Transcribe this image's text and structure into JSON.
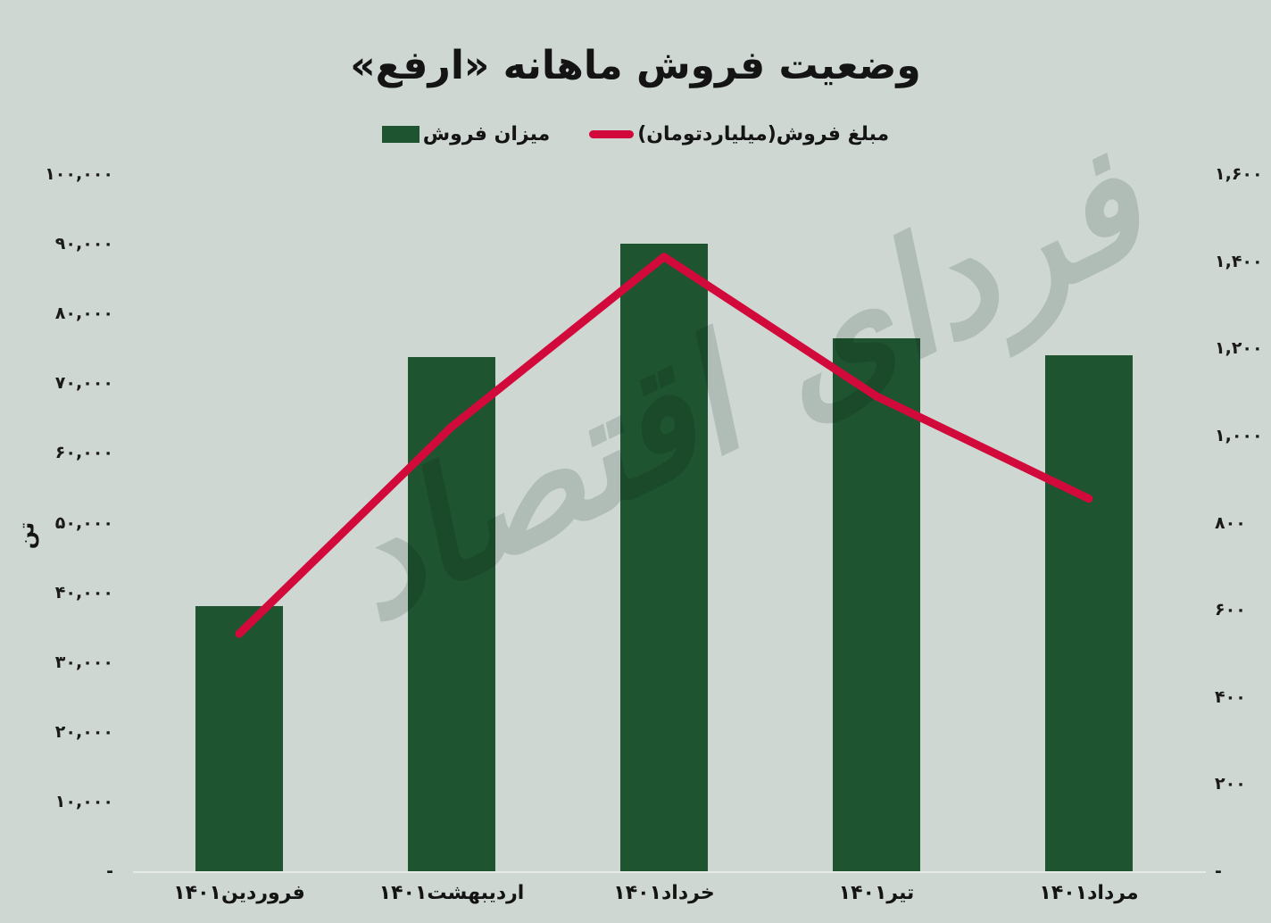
{
  "title": "وضعیت فروش ماهانه «ارفع»",
  "legend": {
    "bar_label": "میزان فروش",
    "line_label": "مبلغ فروش(میلیاردتومان)"
  },
  "watermark": {
    "text": "فردای اقتصاد"
  },
  "axes": {
    "left": {
      "title": "تن",
      "max": 100000,
      "ticks": [
        {
          "label": "۱۰۰,۰۰۰",
          "value": 100000
        },
        {
          "label": "۹۰,۰۰۰",
          "value": 90000
        },
        {
          "label": "۸۰,۰۰۰",
          "value": 80000
        },
        {
          "label": "۷۰,۰۰۰",
          "value": 70000
        },
        {
          "label": "۶۰,۰۰۰",
          "value": 60000
        },
        {
          "label": "۵۰,۰۰۰",
          "value": 50000
        },
        {
          "label": "۴۰,۰۰۰",
          "value": 40000
        },
        {
          "label": "۳۰,۰۰۰",
          "value": 30000
        },
        {
          "label": "۲۰,۰۰۰",
          "value": 20000
        },
        {
          "label": "۱۰,۰۰۰",
          "value": 10000
        },
        {
          "label": "-",
          "value": 0
        }
      ]
    },
    "right": {
      "max": 1600,
      "ticks": [
        {
          "label": "۱,۶۰۰",
          "value": 1600
        },
        {
          "label": "۱,۴۰۰",
          "value": 1400
        },
        {
          "label": "۱,۲۰۰",
          "value": 1200
        },
        {
          "label": "۱,۰۰۰",
          "value": 1000
        },
        {
          "label": "۸۰۰",
          "value": 800
        },
        {
          "label": "۶۰۰",
          "value": 600
        },
        {
          "label": "۴۰۰",
          "value": 400
        },
        {
          "label": "۲۰۰",
          "value": 200
        },
        {
          "label": "-",
          "value": 0
        }
      ]
    }
  },
  "colors": {
    "background": "#cfd7d3",
    "bar": "#1e5430",
    "line": "#d20a3c",
    "axis_line": "#e6eae8",
    "text": "#141414",
    "watermark": "#b9c4c0"
  },
  "chart_data": {
    "type": "combo-bar-line",
    "categories": [
      "فروردین۱۴۰۱",
      "اردیبهشت۱۴۰۱",
      "خرداد۱۴۰۱",
      "تیر۱۴۰۱",
      "مرداد۱۴۰۱"
    ],
    "series": [
      {
        "name": "میزان فروش",
        "type": "bar",
        "axis": "left",
        "unit": "تن",
        "color": "#1e5430",
        "values": [
          38000,
          73800,
          90000,
          76400,
          74000
        ]
      },
      {
        "name": "مبلغ فروش(میلیاردتومان)",
        "type": "line",
        "axis": "right",
        "unit": "میلیارد تومان",
        "color": "#d20a3c",
        "values": [
          545,
          1020,
          1410,
          1090,
          855
        ]
      }
    ],
    "title": "وضعیت فروش ماهانه «ارفع»",
    "left_ylim": [
      0,
      100000
    ],
    "right_ylim": [
      0,
      1600
    ],
    "grid": false,
    "legend_position": "top-center"
  }
}
